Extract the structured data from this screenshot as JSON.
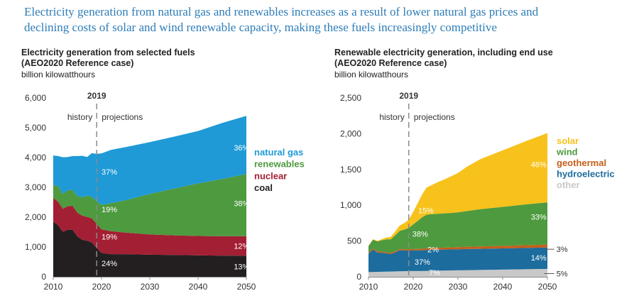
{
  "headline_line1": "Electricity generation from natural gas and renewables increases as a result of lower natural gas prices and",
  "headline_line2": "declining costs of solar and wind renewable capacity, making these fuels increasingly competitive",
  "colors": {
    "natural_gas": "#1f9ad6",
    "renewables": "#4e9a3f",
    "nuclear": "#a31f34",
    "coal": "#231f20",
    "solar": "#f7c21b",
    "wind": "#4e9a3f",
    "geothermal": "#c45f1b",
    "hydroelectric": "#1c6c9e",
    "other": "#c8c8c8"
  },
  "chart_data": [
    {
      "type": "area",
      "stacked": true,
      "title_line1": "Electricity generation from selected fuels",
      "title_line2": "(AEO2020 Reference case)",
      "ylabel": "billion kilowatthours",
      "xlim": [
        2010,
        2050
      ],
      "ylim": [
        0,
        6000
      ],
      "xticks": [
        2010,
        2020,
        2030,
        2040,
        2050
      ],
      "yticks": [
        0,
        1000,
        2000,
        3000,
        4000,
        5000,
        6000
      ],
      "ytick_labels": [
        "0",
        "1,000",
        "2,000",
        "3,000",
        "4,000",
        "5,000",
        "6,000"
      ],
      "divider_year": 2019,
      "divider_label": "2019",
      "history_label": "history",
      "projections_label": "projections",
      "x": [
        2010,
        2011,
        2012,
        2013,
        2014,
        2015,
        2016,
        2017,
        2018,
        2019,
        2020,
        2022,
        2025,
        2030,
        2035,
        2040,
        2045,
        2050
      ],
      "series": [
        {
          "name": "coal",
          "color_key": "coal",
          "values": [
            1850,
            1730,
            1510,
            1580,
            1580,
            1350,
            1240,
            1210,
            1150,
            965,
            800,
            760,
            760,
            740,
            730,
            720,
            710,
            710
          ]
        },
        {
          "name": "nuclear",
          "color_key": "nuclear",
          "values": [
            800,
            790,
            770,
            790,
            800,
            800,
            810,
            800,
            810,
            810,
            790,
            770,
            720,
            680,
            660,
            650,
            650,
            650
          ]
        },
        {
          "name": "renewables",
          "color_key": "renewables",
          "values": [
            430,
            520,
            500,
            530,
            540,
            560,
            620,
            710,
            720,
            760,
            820,
            940,
            1090,
            1360,
            1570,
            1760,
            1920,
            2090
          ]
        },
        {
          "name": "natural gas",
          "color_key": "natural_gas",
          "values": [
            990,
            1010,
            1230,
            1120,
            1130,
            1340,
            1390,
            1300,
            1470,
            1590,
            1730,
            1790,
            1780,
            1740,
            1740,
            1760,
            1880,
            1950
          ]
        }
      ],
      "legend": [
        {
          "label": "natural gas",
          "color_key": "natural_gas"
        },
        {
          "label": "renewables",
          "color_key": "renewables"
        },
        {
          "label": "nuclear",
          "color_key": "nuclear"
        },
        {
          "label": "coal",
          "color_key": "coal"
        }
      ],
      "annotations": [
        {
          "text": "37%",
          "x": 2020,
          "y": 3520
        },
        {
          "text": "19%",
          "x": 2020,
          "y": 2260
        },
        {
          "text": "19%",
          "x": 2020,
          "y": 1350
        },
        {
          "text": "24%",
          "x": 2020,
          "y": 450
        },
        {
          "text": "36%",
          "x": 2047.4,
          "y": 4330
        },
        {
          "text": "38%",
          "x": 2047.4,
          "y": 2460
        },
        {
          "text": "12%",
          "x": 2047.4,
          "y": 1040
        },
        {
          "text": "13%",
          "x": 2047.4,
          "y": 350
        }
      ]
    },
    {
      "type": "area",
      "stacked": true,
      "title_line1": "Renewable electricity generation, including end use",
      "title_line2": "(AEO2020 Reference case)",
      "ylabel": "billion kilowatthours",
      "xlim": [
        2010,
        2050
      ],
      "ylim": [
        0,
        2500
      ],
      "xticks": [
        2010,
        2020,
        2030,
        2040,
        2050
      ],
      "yticks": [
        0,
        500,
        1000,
        1500,
        2000,
        2500
      ],
      "ytick_labels": [
        "0",
        "500",
        "1,000",
        "1,500",
        "2,000",
        "2,500"
      ],
      "divider_year": 2019,
      "divider_label": "2019",
      "history_label": "history",
      "projections_label": "projections",
      "x": [
        2010,
        2011,
        2012,
        2013,
        2014,
        2015,
        2016,
        2017,
        2018,
        2019,
        2020,
        2021,
        2022,
        2023,
        2025,
        2028,
        2030,
        2032,
        2035,
        2040,
        2045,
        2050
      ],
      "series": [
        {
          "name": "other",
          "color_key": "other",
          "values": [
            65,
            67,
            68,
            70,
            72,
            73,
            75,
            76,
            78,
            80,
            80,
            80,
            80,
            82,
            85,
            88,
            90,
            92,
            95,
            100,
            105,
            110
          ]
        },
        {
          "name": "hydroelectric",
          "color_key": "hydroelectric",
          "values": [
            255,
            315,
            270,
            265,
            255,
            245,
            265,
            295,
            290,
            285,
            290,
            290,
            290,
            292,
            293,
            294,
            295,
            296,
            296,
            297,
            298,
            300
          ]
        },
        {
          "name": "geothermal",
          "color_key": "geothermal",
          "values": [
            15,
            17,
            16,
            16,
            16,
            17,
            17,
            17,
            17,
            18,
            18,
            20,
            22,
            24,
            26,
            28,
            30,
            31,
            33,
            35,
            38,
            40
          ]
        },
        {
          "name": "wind",
          "color_key": "wind",
          "values": [
            95,
            120,
            140,
            160,
            180,
            190,
            225,
            255,
            275,
            300,
            345,
            390,
            440,
            470,
            475,
            480,
            485,
            500,
            520,
            545,
            570,
            590
          ]
        },
        {
          "name": "solar",
          "color_key": "solar",
          "values": [
            5,
            7,
            10,
            15,
            25,
            35,
            55,
            75,
            90,
            115,
            175,
            250,
            320,
            380,
            430,
            500,
            550,
            620,
            700,
            790,
            880,
            970
          ]
        }
      ],
      "legend": [
        {
          "label": "solar",
          "color_key": "solar"
        },
        {
          "label": "wind",
          "color_key": "wind"
        },
        {
          "label": "geothermal",
          "color_key": "geothermal"
        },
        {
          "label": "hydroelectric",
          "color_key": "hydroelectric"
        },
        {
          "label": "other",
          "color_key": "other"
        }
      ],
      "annotations": [
        {
          "text": "15%",
          "x": 2021.1,
          "y": 930,
          "dark": false
        },
        {
          "text": "38%",
          "x": 2019.8,
          "y": 600,
          "dark": false
        },
        {
          "text": "2%",
          "x": 2023.2,
          "y": 380,
          "dark": false
        },
        {
          "text": "37%",
          "x": 2020.3,
          "y": 210,
          "dark": false
        },
        {
          "text": "7%",
          "x": 2023.5,
          "y": 60,
          "dark": false
        },
        {
          "text": "46%",
          "x": 2046.3,
          "y": 1570,
          "dark": false
        },
        {
          "text": "33%",
          "x": 2046.3,
          "y": 840,
          "dark": false
        },
        {
          "text": "14%",
          "x": 2046.3,
          "y": 270,
          "dark": false
        },
        {
          "text": "3%",
          "x": 2052.0,
          "y": 385,
          "dark": true,
          "leader": true
        },
        {
          "text": "5%",
          "x": 2052.0,
          "y": 45,
          "dark": true,
          "leader": true
        }
      ]
    }
  ]
}
